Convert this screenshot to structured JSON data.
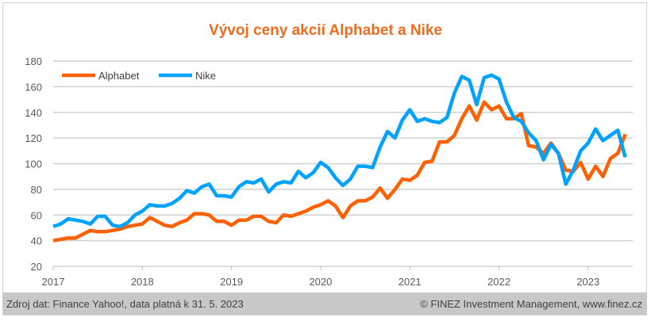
{
  "chart_data": {
    "type": "line",
    "title": "Vývoj ceny akcií Alphabet a Nike",
    "xlabel": "",
    "ylabel": "",
    "ylim": [
      20,
      180
    ],
    "yticks": [
      "20",
      "40",
      "60",
      "80",
      "100",
      "120",
      "140",
      "160",
      "180"
    ],
    "xticks": [
      "2017",
      "2018",
      "2019",
      "2020",
      "2021",
      "2022",
      "2023"
    ],
    "x_start": "2017-01",
    "frequency": "monthly",
    "grid": true,
    "legend_placement": "top-left",
    "series": [
      {
        "name": "Alphabet",
        "color": "#ff6000",
        "values": [
          40,
          41,
          42,
          42,
          45,
          48,
          47,
          47,
          48,
          49,
          51,
          52,
          53,
          58,
          55,
          52,
          51,
          54,
          56,
          61,
          61,
          60,
          55,
          55,
          52,
          56,
          56,
          59,
          59,
          55,
          54,
          60,
          59,
          61,
          63,
          66,
          68,
          71,
          67,
          58,
          67,
          71,
          71,
          74,
          81,
          73,
          80,
          88,
          87,
          91,
          101,
          102,
          117,
          117,
          122,
          135,
          145,
          134,
          148,
          142,
          145,
          135,
          135,
          139,
          114,
          113,
          108,
          116,
          108,
          95,
          94,
          101,
          88,
          98,
          90,
          104,
          108,
          123
        ]
      },
      {
        "name": "Nike",
        "color": "#00a2ff",
        "values": [
          51,
          53,
          57,
          56,
          55,
          53,
          59,
          59,
          52,
          51,
          54,
          60,
          63,
          68,
          67,
          67,
          69,
          73,
          79,
          77,
          82,
          84,
          75,
          75,
          74,
          82,
          86,
          85,
          88,
          78,
          84,
          86,
          85,
          94,
          89,
          93,
          101,
          97,
          89,
          83,
          88,
          98,
          98,
          97,
          113,
          125,
          120,
          134,
          142,
          133,
          135,
          133,
          132,
          136,
          155,
          168,
          165,
          146,
          167,
          169,
          166,
          148,
          136,
          133,
          124,
          118,
          103,
          115,
          108,
          84,
          95,
          110,
          116,
          127,
          118,
          122,
          126,
          105
        ]
      }
    ]
  },
  "footer": {
    "source": "Zdroj dat: Finance Yahoo!, data platná k 31. 5. 2023",
    "copyright": "© FINEZ Investment Management, www.finez.cz"
  }
}
